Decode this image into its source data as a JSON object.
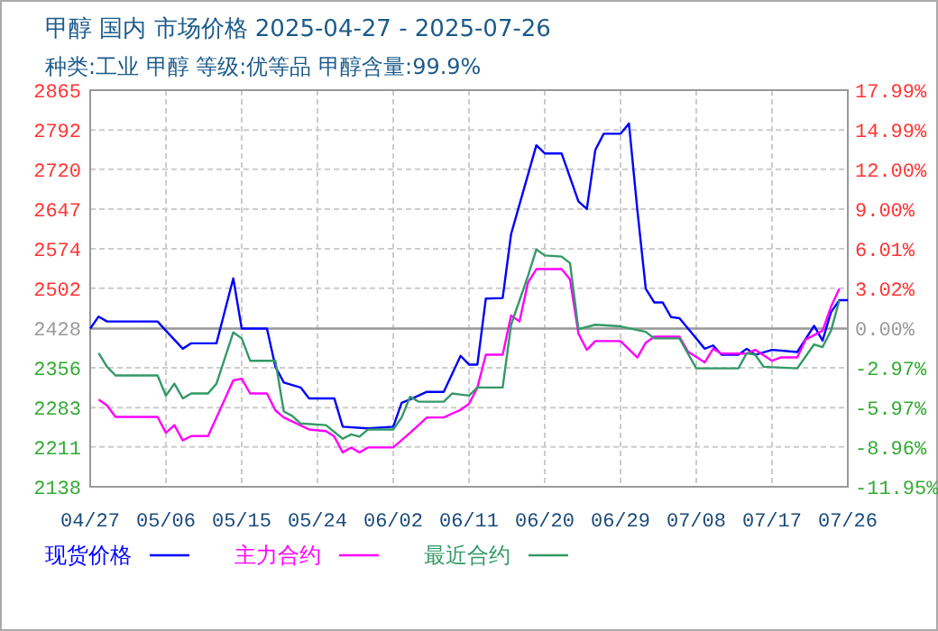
{
  "chart_data": {
    "type": "line",
    "title": "甲醇 国内 市场价格 2025-04-27 - 2025-07-26",
    "subtitle": "种类:工业 甲醇 等级:优等品 甲醇含量:99.9%",
    "xlim": [
      "2025-04-27",
      "2025-07-26"
    ],
    "xticks": [
      {
        "value": "2025-04-27",
        "label": "04/27"
      },
      {
        "value": "2025-05-06",
        "label": "05/06"
      },
      {
        "value": "2025-05-15",
        "label": "05/15"
      },
      {
        "value": "2025-05-24",
        "label": "05/24"
      },
      {
        "value": "2025-06-02",
        "label": "06/02"
      },
      {
        "value": "2025-06-11",
        "label": "06/11"
      },
      {
        "value": "2025-06-20",
        "label": "06/20"
      },
      {
        "value": "2025-06-29",
        "label": "06/29"
      },
      {
        "value": "2025-07-08",
        "label": "07/08"
      },
      {
        "value": "2025-07-17",
        "label": "07/17"
      },
      {
        "value": "2025-07-26",
        "label": "07/26"
      }
    ],
    "ylim": [
      2138,
      2865
    ],
    "yticks": [
      2138,
      2211,
      2283,
      2356,
      2428,
      2502,
      2574,
      2647,
      2720,
      2792,
      2865
    ],
    "y2lim": [
      -11.95,
      17.99
    ],
    "y2ticks": [
      {
        "value": -11.95,
        "label": "-11.95%"
      },
      {
        "value": -8.96,
        "label": "-8.96%"
      },
      {
        "value": -5.97,
        "label": "-5.97%"
      },
      {
        "value": -2.97,
        "label": "-2.97%"
      },
      {
        "value": 0,
        "label": "0.00%"
      },
      {
        "value": 3.02,
        "label": "3.02%"
      },
      {
        "value": 6.01,
        "label": "6.01%"
      },
      {
        "value": 9,
        "label": "9.00%"
      },
      {
        "value": 12,
        "label": "12.00%"
      },
      {
        "value": 14.99,
        "label": "14.99%"
      },
      {
        "value": 17.99,
        "label": "17.99%"
      }
    ],
    "ref_lines": [
      {
        "axis": "y",
        "value": 2428,
        "color": "#999999"
      }
    ],
    "grid": true,
    "legend": "bottom",
    "series": [
      {
        "name": "现货价格",
        "color": "#0000ff",
        "x": [
          "2025-04-27",
          "2025-04-28",
          "2025-04-29",
          "2025-05-05",
          "2025-05-06",
          "2025-05-08",
          "2025-05-09",
          "2025-05-12",
          "2025-05-14",
          "2025-05-15",
          "2025-05-18",
          "2025-05-19",
          "2025-05-20",
          "2025-05-22",
          "2025-05-23",
          "2025-05-26",
          "2025-05-27",
          "2025-05-30",
          "2025-06-02",
          "2025-06-03",
          "2025-06-04",
          "2025-06-06",
          "2025-06-08",
          "2025-06-10",
          "2025-06-11",
          "2025-06-12",
          "2025-06-13",
          "2025-06-15",
          "2025-06-16",
          "2025-06-19",
          "2025-06-20",
          "2025-06-22",
          "2025-06-24",
          "2025-06-25",
          "2025-06-26",
          "2025-06-27",
          "2025-06-29",
          "2025-06-30",
          "2025-07-01",
          "2025-07-02",
          "2025-07-03",
          "2025-07-04",
          "2025-07-05",
          "2025-07-06",
          "2025-07-09",
          "2025-07-10",
          "2025-07-11",
          "2025-07-13",
          "2025-07-14",
          "2025-07-15",
          "2025-07-17",
          "2025-07-20",
          "2025-07-22",
          "2025-07-23",
          "2025-07-24",
          "2025-07-25",
          "2025-07-26"
        ],
        "values": [
          2428,
          2450,
          2441,
          2441,
          2424,
          2391,
          2401,
          2401,
          2520,
          2428,
          2428,
          2358,
          2329,
          2320,
          2300,
          2300,
          2248,
          2245,
          2248,
          2292,
          2298,
          2312,
          2312,
          2378,
          2362,
          2362,
          2483,
          2484,
          2601,
          2764,
          2749,
          2749,
          2661,
          2647,
          2755,
          2785,
          2785,
          2804,
          2645,
          2501,
          2476,
          2476,
          2449,
          2447,
          2391,
          2397,
          2380,
          2380,
          2391,
          2380,
          2389,
          2385,
          2433,
          2406,
          2458,
          2480,
          2480
        ]
      },
      {
        "name": "主力合约",
        "color": "#ff00ff",
        "x": [
          "2025-04-28",
          "2025-04-29",
          "2025-04-30",
          "2025-05-05",
          "2025-05-06",
          "2025-05-07",
          "2025-05-08",
          "2025-05-09",
          "2025-05-11",
          "2025-05-12",
          "2025-05-14",
          "2025-05-15",
          "2025-05-16",
          "2025-05-18",
          "2025-05-19",
          "2025-05-20",
          "2025-05-23",
          "2025-05-25",
          "2025-05-26",
          "2025-05-27",
          "2025-05-28",
          "2025-05-29",
          "2025-05-30",
          "2025-06-02",
          "2025-06-04",
          "2025-06-06",
          "2025-06-08",
          "2025-06-10",
          "2025-06-11",
          "2025-06-12",
          "2025-06-13",
          "2025-06-15",
          "2025-06-16",
          "2025-06-17",
          "2025-06-18",
          "2025-06-19",
          "2025-06-22",
          "2025-06-23",
          "2025-06-24",
          "2025-06-25",
          "2025-06-26",
          "2025-06-29",
          "2025-07-01",
          "2025-07-02",
          "2025-07-03",
          "2025-07-06",
          "2025-07-07",
          "2025-07-09",
          "2025-07-10",
          "2025-07-11",
          "2025-07-14",
          "2025-07-15",
          "2025-07-17",
          "2025-07-18",
          "2025-07-20",
          "2025-07-21",
          "2025-07-23",
          "2025-07-24",
          "2025-07-25"
        ],
        "values": [
          2298,
          2287,
          2266,
          2266,
          2237,
          2251,
          2223,
          2231,
          2231,
          2265,
          2333,
          2336,
          2309,
          2309,
          2278,
          2265,
          2243,
          2240,
          2230,
          2201,
          2210,
          2201,
          2210,
          2210,
          2237,
          2265,
          2265,
          2279,
          2290,
          2320,
          2380,
          2380,
          2452,
          2441,
          2512,
          2537,
          2537,
          2518,
          2419,
          2389,
          2405,
          2405,
          2375,
          2402,
          2413,
          2413,
          2386,
          2366,
          2391,
          2382,
          2382,
          2389,
          2369,
          2375,
          2375,
          2408,
          2424,
          2468,
          2501
        ]
      },
      {
        "name": "最近合约",
        "color": "#339966",
        "x": [
          "2025-04-28",
          "2025-04-29",
          "2025-04-30",
          "2025-05-05",
          "2025-05-06",
          "2025-05-07",
          "2025-05-08",
          "2025-05-09",
          "2025-05-11",
          "2025-05-12",
          "2025-05-14",
          "2025-05-15",
          "2025-05-16",
          "2025-05-19",
          "2025-05-20",
          "2025-05-21",
          "2025-05-22",
          "2025-05-25",
          "2025-05-27",
          "2025-05-28",
          "2025-05-29",
          "2025-05-30",
          "2025-06-02",
          "2025-06-03",
          "2025-06-04",
          "2025-06-05",
          "2025-06-08",
          "2025-06-09",
          "2025-06-11",
          "2025-06-12",
          "2025-06-15",
          "2025-06-16",
          "2025-06-18",
          "2025-06-19",
          "2025-06-20",
          "2025-06-22",
          "2025-06-23",
          "2025-06-24",
          "2025-06-26",
          "2025-06-29",
          "2025-07-02",
          "2025-07-03",
          "2025-07-06",
          "2025-07-08",
          "2025-07-13",
          "2025-07-14",
          "2025-07-15",
          "2025-07-16",
          "2025-07-20",
          "2025-07-22",
          "2025-07-23",
          "2025-07-24",
          "2025-07-25"
        ],
        "values": [
          2383,
          2358,
          2342,
          2342,
          2305,
          2327,
          2300,
          2309,
          2309,
          2327,
          2421,
          2410,
          2369,
          2369,
          2276,
          2268,
          2254,
          2251,
          2226,
          2234,
          2230,
          2243,
          2243,
          2265,
          2303,
          2294,
          2294,
          2309,
          2305,
          2320,
          2320,
          2435,
          2524,
          2573,
          2562,
          2560,
          2548,
          2427,
          2435,
          2432,
          2422,
          2410,
          2410,
          2355,
          2355,
          2383,
          2380,
          2358,
          2355,
          2399,
          2394,
          2424,
          2480
        ]
      }
    ]
  }
}
